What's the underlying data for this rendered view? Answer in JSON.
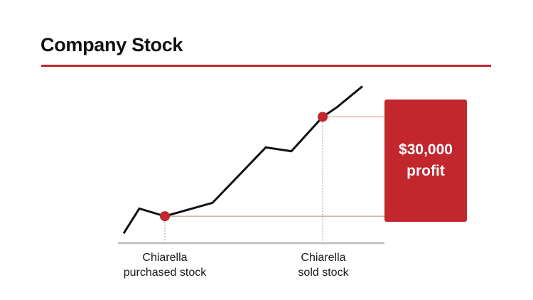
{
  "title": "Company Stock",
  "colors": {
    "accent": "#c1272d",
    "line": "#111111",
    "axis": "#bdbdbd"
  },
  "profit": {
    "amount": "$30,000",
    "label": "profit"
  },
  "events": {
    "purchase": {
      "line1": "Chiarella",
      "line2": "purchased stock"
    },
    "sale": {
      "line1": "Chiarella",
      "line2": "sold stock"
    }
  },
  "chart_data": {
    "type": "line",
    "title": "Company Stock",
    "xlabel": "",
    "ylabel": "",
    "x": [
      0,
      1,
      2,
      3,
      4,
      5,
      6,
      7,
      8
    ],
    "values": [
      1,
      14,
      10,
      17,
      46,
      44,
      62,
      67,
      78
    ],
    "purchase_index": 2,
    "sale_index": 6,
    "ylim": [
      0,
      80
    ]
  }
}
